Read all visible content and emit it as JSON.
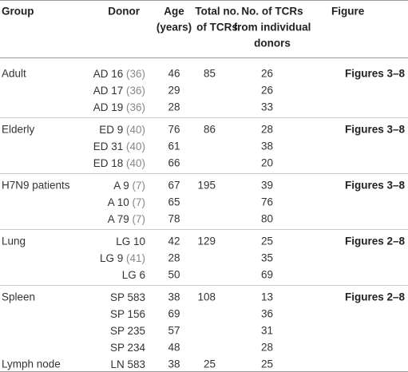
{
  "header": [
    [
      "Group"
    ],
    [
      "Donor"
    ],
    [
      "Age",
      "(years)"
    ],
    [
      "Total no.",
      "of TCRs"
    ],
    [
      "No. of TCRs",
      "from individual",
      "donors"
    ],
    [
      "Figure"
    ]
  ],
  "groups": [
    {
      "group": "Adult",
      "total": 85,
      "figure": "Figures 3–8",
      "donors": [
        {
          "name": "AD 16",
          "ref": "(36)",
          "age": 46,
          "tcrs": 26
        },
        {
          "name": "AD 17",
          "ref": "(36)",
          "age": 29,
          "tcrs": 26
        },
        {
          "name": "AD 19",
          "ref": "(36)",
          "age": 28,
          "tcrs": 33
        }
      ]
    },
    {
      "group": "Elderly",
      "total": 86,
      "figure": "Figures 3–8",
      "donors": [
        {
          "name": "ED 9",
          "ref": "(40)",
          "age": 76,
          "tcrs": 28
        },
        {
          "name": "ED 31",
          "ref": "(40)",
          "age": 61,
          "tcrs": 38
        },
        {
          "name": "ED 18",
          "ref": "(40)",
          "age": 66,
          "tcrs": 20
        }
      ]
    },
    {
      "group": "H7N9 patients",
      "total": 195,
      "figure": "Figures 3–8",
      "donors": [
        {
          "name": "A 9",
          "ref": "(7)",
          "age": 67,
          "tcrs": 39
        },
        {
          "name": "A 10",
          "ref": "(7)",
          "age": 65,
          "tcrs": 76
        },
        {
          "name": "A 79",
          "ref": "(7)",
          "age": 78,
          "tcrs": 80
        }
      ]
    },
    {
      "group": "Lung",
      "total": 129,
      "figure": "Figures 2–8",
      "donors": [
        {
          "name": "LG 10",
          "age": 42,
          "tcrs": 25
        },
        {
          "name": "LG 9",
          "ref": "(41)",
          "age": 28,
          "tcrs": 35
        },
        {
          "name": "LG 6",
          "age": 50,
          "tcrs": 69
        }
      ]
    },
    {
      "group": "Spleen",
      "total": 108,
      "figure": "Figures 2–8",
      "donors": [
        {
          "name": "SP 583",
          "age": 38,
          "tcrs": 13
        },
        {
          "name": "SP 156",
          "age": 69,
          "tcrs": 36
        },
        {
          "name": "SP 235",
          "age": 57,
          "tcrs": 31
        },
        {
          "name": "SP 234",
          "age": 48,
          "tcrs": 28
        }
      ]
    },
    {
      "group": "Lymph node",
      "total": 25,
      "donors": [
        {
          "name": "LN 583",
          "age": 38,
          "tcrs": 25
        }
      ]
    }
  ]
}
